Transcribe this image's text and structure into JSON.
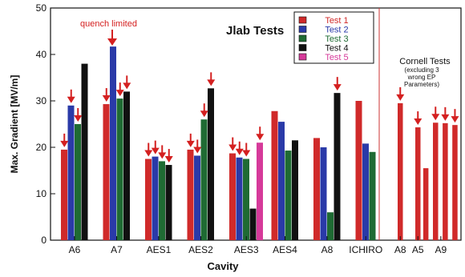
{
  "chart_data": [
    {
      "type": "bar",
      "ylabel": "Max. Gradient [MV/m]",
      "xlabel": "Cavity",
      "ylim": [
        0,
        50
      ],
      "yticks": [
        0,
        10,
        20,
        30,
        40,
        50
      ],
      "grid": false,
      "legend_position": "top-right",
      "categories": [
        "A6",
        "A7",
        "AES1",
        "AES2",
        "AES3",
        "AES4",
        "A8",
        "ICHIRO"
      ],
      "series": [
        {
          "name": "Test 1",
          "color": "#d02a2a",
          "values": [
            19.5,
            29.3,
            17.5,
            19.5,
            18.7,
            27.8,
            22.0,
            30.0
          ],
          "arrows": [
            true,
            true,
            true,
            true,
            true,
            false,
            false,
            false
          ]
        },
        {
          "name": "Test 2",
          "color": "#2a3aa8",
          "values": [
            29.0,
            41.7,
            18.0,
            18.2,
            17.8,
            25.5,
            20.0,
            20.8
          ],
          "arrows": [
            true,
            false,
            true,
            true,
            true,
            false,
            false,
            false
          ]
        },
        {
          "name": "Test 3",
          "color": "#1f6b33",
          "values": [
            25.0,
            30.5,
            17.0,
            26.0,
            17.5,
            19.3,
            6.0,
            19.0
          ],
          "arrows": [
            true,
            true,
            true,
            true,
            true,
            false,
            false,
            false
          ]
        },
        {
          "name": "Test 4",
          "color": "#111111",
          "values": [
            38.0,
            32.0,
            16.2,
            32.7,
            6.8,
            21.5,
            31.7,
            null
          ],
          "arrows": [
            false,
            true,
            true,
            true,
            false,
            false,
            true,
            false
          ]
        },
        {
          "name": "Test 5",
          "color": "#d63a9a",
          "values": [
            null,
            null,
            null,
            null,
            21.0,
            null,
            null,
            null
          ],
          "arrows": [
            false,
            false,
            false,
            false,
            true,
            false,
            false,
            false
          ]
        }
      ],
      "annotations": {
        "title": "Jlab Tests",
        "quench_note": "quench limited"
      }
    },
    {
      "type": "bar",
      "title": "Cornell Tests",
      "subtitle_line1": "(excluding 3",
      "subtitle_line2": "wrong EP",
      "subtitle_line3": "Parameters)",
      "ylim": [
        0,
        50
      ],
      "color": "#d02a2a",
      "bars": [
        {
          "x": 0,
          "value": 29.5,
          "arrow": true
        },
        {
          "x": 1,
          "value": 24.3,
          "arrow": true
        },
        {
          "x": 1.45,
          "value": 15.5,
          "arrow": false
        },
        {
          "x": 2,
          "value": 25.3,
          "arrow": true
        },
        {
          "x": 2.55,
          "value": 25.2,
          "arrow": true
        },
        {
          "x": 3.1,
          "value": 24.8,
          "arrow": true
        }
      ],
      "category_labels": [
        {
          "label": "A8",
          "x": 0
        },
        {
          "label": "A5",
          "x": 1
        },
        {
          "label": "A9",
          "x": 2.3
        }
      ]
    }
  ]
}
